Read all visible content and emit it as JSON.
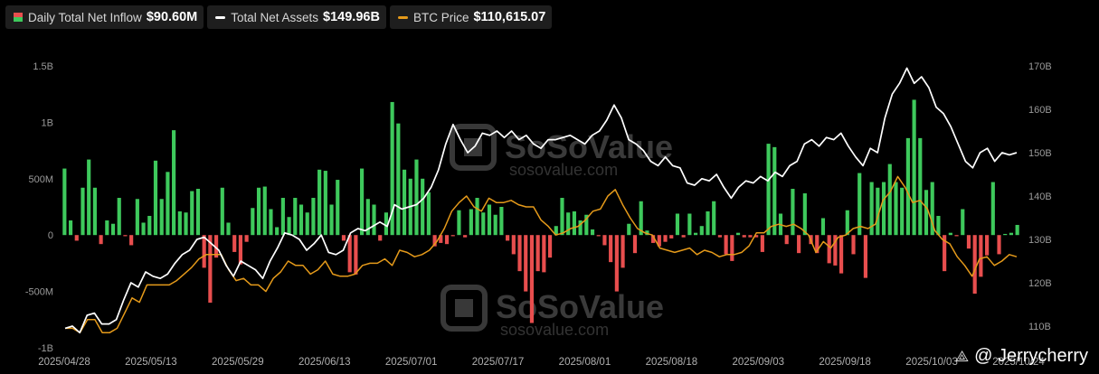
{
  "legend": {
    "inflow": {
      "label": "Daily Total Net Inflow",
      "value": "$90.60M"
    },
    "assets": {
      "label": "Total Net Assets",
      "value": "$149.96B",
      "color": "#ffffff"
    },
    "btc": {
      "label": "BTC Price",
      "value": "$110,615.07",
      "color": "#e59a1a"
    }
  },
  "watermark": {
    "brand": "SoSoValue",
    "url": "sosovalue.com"
  },
  "credit": {
    "text": "@ Jerrycherry",
    "icon": "share-icon"
  },
  "colors": {
    "positive": "#3ec95c",
    "negative": "#e84e4e",
    "assets_line": "#ffffff",
    "btc_line": "#e59a1a"
  },
  "chart_data": {
    "type": "bar",
    "x_tick_labels": [
      "2025/04/28",
      "2025/05/13",
      "2025/05/29",
      "2025/06/13",
      "2025/07/01",
      "2025/07/17",
      "2025/08/01",
      "2025/08/18",
      "2025/09/03",
      "2025/09/18",
      "2025/10/03",
      "2025/10/24"
    ],
    "y_left_ticks": [
      "1.5B",
      "1B",
      "500M",
      "0",
      "-500M",
      "-1B"
    ],
    "y_right_ticks": [
      "170B",
      "160B",
      "150B",
      "140B",
      "130B",
      "120B",
      "110B"
    ],
    "y_left_range": [
      -1000,
      1500
    ],
    "y_right_range": [
      105,
      170
    ],
    "series": [
      {
        "name": "Daily Total Net Inflow",
        "unit": "M",
        "values": [
          590,
          130,
          -50,
          420,
          670,
          420,
          -80,
          130,
          100,
          330,
          -10,
          -90,
          320,
          110,
          170,
          660,
          320,
          560,
          930,
          210,
          200,
          390,
          410,
          -290,
          -600,
          -200,
          420,
          110,
          -150,
          -260,
          -60,
          240,
          420,
          430,
          230,
          70,
          330,
          160,
          330,
          270,
          200,
          330,
          580,
          570,
          270,
          490,
          -50,
          -330,
          -350,
          590,
          320,
          270,
          -50,
          200,
          1180,
          990,
          580,
          500,
          670,
          500,
          380,
          -100,
          -70,
          -80,
          -10,
          220,
          -20,
          230,
          330,
          200,
          270,
          180,
          250,
          -50,
          -170,
          -320,
          -500,
          -780,
          -320,
          -330,
          -200,
          80,
          330,
          200,
          210,
          130,
          180,
          50,
          -10,
          -90,
          -240,
          -500,
          -290,
          100,
          -160,
          300,
          40,
          -70,
          -100,
          -60,
          -30,
          190,
          -20,
          190,
          20,
          80,
          210,
          300,
          -20,
          -170,
          -230,
          20,
          -20,
          -20,
          -20,
          -150,
          810,
          780,
          190,
          -80,
          410,
          -160,
          370,
          -80,
          -160,
          150,
          -250,
          -270,
          -340,
          220,
          -170,
          550,
          -380,
          470,
          420,
          470,
          630,
          470,
          420,
          860,
          1200,
          860,
          400,
          470,
          170,
          -320,
          20,
          -10,
          230,
          -120,
          -520,
          -370,
          -180,
          470,
          -170,
          10,
          20,
          90
        ]
      },
      {
        "name": "Total Net Assets",
        "unit": "B",
        "values": [
          109.5,
          110.0,
          108.5,
          112.5,
          113.0,
          110.5,
          110.5,
          111.5,
          116.0,
          120.0,
          119.0,
          122.5,
          121.5,
          121.0,
          122.0,
          124.5,
          126.5,
          127.5,
          130.0,
          130.5,
          129.0,
          127.5,
          124.0,
          121.5,
          125.0,
          124.0,
          123.0,
          121.0,
          125.0,
          128.0,
          131.5,
          131.0,
          130.0,
          127.5,
          129.0,
          131.0,
          127.0,
          126.5,
          127.5,
          131.5,
          132.5,
          132.0,
          133.0,
          134.0,
          133.0,
          138.0,
          137.0,
          137.5,
          138.0,
          139.5,
          142.0,
          146.0,
          152.0,
          156.5,
          153.0,
          150.0,
          151.5,
          154.5,
          154.0,
          155.0,
          153.5,
          155.0,
          153.0,
          154.0,
          152.0,
          151.0,
          153.0,
          153.0,
          153.5,
          154.0,
          153.0,
          152.0,
          154.0,
          155.0,
          157.5,
          161.0,
          158.0,
          153.0,
          152.0,
          150.5,
          148.0,
          147.0,
          149.0,
          147.0,
          146.5,
          143.0,
          142.5,
          144.0,
          143.5,
          145.0,
          142.0,
          139.5,
          142.0,
          143.5,
          143.0,
          144.5,
          143.5,
          145.5,
          144.5,
          147.0,
          148.0,
          152.0,
          153.0,
          151.5,
          153.5,
          153.0,
          154.5,
          151.5,
          149.0,
          147.0,
          151.0,
          150.0,
          158.0,
          163.5,
          166.0,
          169.5,
          166.0,
          167.5,
          165.0,
          160.5,
          159.0,
          156.0,
          152.0,
          148.0,
          146.5,
          150.0,
          151.0,
          148.0,
          150.0,
          149.5,
          150.0
        ]
      },
      {
        "name": "BTC Price",
        "unit": "B",
        "values": [
          109.5,
          109.5,
          108.5,
          111.5,
          111.5,
          108.5,
          108.5,
          109.5,
          113.0,
          116.5,
          115.5,
          119.5,
          119.5,
          119.5,
          119.5,
          120.5,
          122.0,
          123.5,
          125.5,
          126.5,
          126.5,
          126.5,
          123.0,
          120.5,
          121.0,
          119.5,
          119.5,
          118.0,
          121.0,
          122.5,
          125.0,
          124.0,
          124.0,
          122.0,
          123.0,
          125.0,
          122.0,
          121.5,
          121.5,
          122.0,
          124.0,
          124.5,
          124.5,
          125.5,
          124.0,
          127.5,
          127.0,
          126.0,
          126.5,
          127.5,
          129.5,
          132.5,
          136.5,
          138.5,
          140.0,
          137.5,
          136.5,
          139.5,
          138.5,
          138.5,
          139.0,
          138.0,
          137.5,
          137.5,
          134.5,
          133.0,
          131.0,
          131.5,
          132.5,
          133.0,
          134.5,
          136.5,
          137.0,
          140.0,
          141.5,
          138.0,
          135.0,
          132.5,
          131.5,
          131.0,
          128.0,
          127.5,
          127.0,
          127.5,
          128.0,
          126.5,
          127.5,
          127.0,
          126.0,
          126.5,
          126.5,
          127.0,
          128.5,
          131.5,
          131.5,
          133.0,
          133.5,
          133.0,
          133.5,
          132.5,
          131.0,
          127.0,
          129.5,
          128.0,
          130.5,
          131.0,
          132.5,
          133.0,
          132.5,
          133.5,
          139.0,
          141.0,
          144.5,
          142.0,
          138.5,
          139.0,
          137.0,
          132.0,
          130.0,
          129.0,
          126.0,
          124.0,
          121.5,
          125.5,
          126.0,
          124.0,
          125.0,
          126.5,
          126.0
        ]
      }
    ],
    "legend_position": "top-left",
    "grid": false
  }
}
